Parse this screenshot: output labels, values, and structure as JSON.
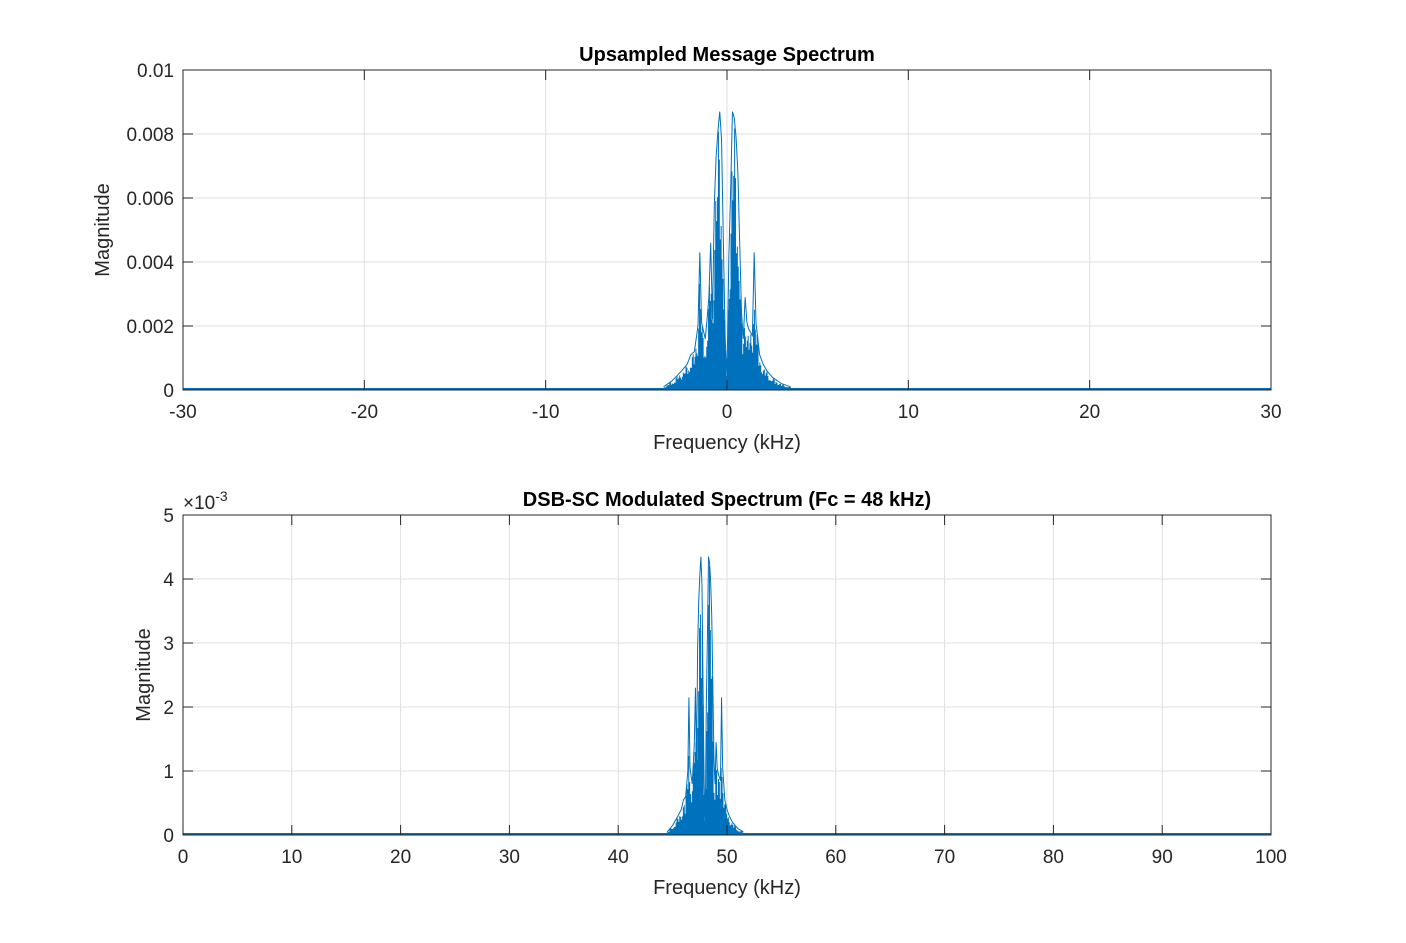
{
  "chart_data": [
    {
      "type": "line",
      "title": "Upsampled Message Spectrum",
      "xlabel": "Frequency (kHz)",
      "ylabel": "Magnitude",
      "xlim": [
        -30,
        30
      ],
      "ylim": [
        0,
        0.01
      ],
      "xticks": [
        -30,
        -20,
        -10,
        0,
        10,
        20,
        30
      ],
      "xtick_labels": [
        "-30",
        "-20",
        "-10",
        "0",
        "10",
        "20",
        "30"
      ],
      "yticks": [
        0,
        0.002,
        0.004,
        0.006,
        0.008,
        0.01
      ],
      "ytick_labels": [
        "0",
        "0.002",
        "0.004",
        "0.006",
        "0.008",
        "0.01"
      ],
      "exponent_label": "",
      "grid": true,
      "line_color": "#0072BD",
      "series": [
        {
          "x": [
            -3.5,
            -3,
            -2.5,
            -2.2,
            -2,
            -1.8,
            -1.6,
            -1.5,
            -1.4,
            -1.2,
            -1.1,
            -1.0,
            -0.9,
            -0.8,
            -0.7,
            -0.6,
            -0.5,
            -0.4,
            -0.3,
            -0.2,
            -0.1,
            0,
            0.1,
            0.2,
            0.3,
            0.4,
            0.5,
            0.6,
            0.7,
            0.8,
            0.9,
            1.0,
            1.1,
            1.2,
            1.4,
            1.5,
            1.6,
            1.8,
            2.0,
            2.2,
            2.5,
            3.0,
            3.5
          ],
          "y": [
            0.0001,
            0.0003,
            0.0006,
            0.0008,
            0.0011,
            0.0012,
            0.002,
            0.0043,
            0.0021,
            0.0016,
            0.0022,
            0.0029,
            0.0046,
            0.0022,
            0.0058,
            0.0073,
            0.0081,
            0.0087,
            0.0078,
            0.0046,
            0.0016,
            0.0004,
            0.0041,
            0.0062,
            0.0087,
            0.0085,
            0.0079,
            0.0068,
            0.0046,
            0.0024,
            0.0016,
            0.0029,
            0.0021,
            0.0019,
            0.0017,
            0.0043,
            0.0021,
            0.0011,
            0.0008,
            0.0006,
            0.0004,
            0.0002,
            0.0001
          ]
        }
      ]
    },
    {
      "type": "line",
      "title": "DSB-SC Modulated Spectrum (Fc = 48 kHz)",
      "xlabel": "Frequency (kHz)",
      "ylabel": "Magnitude",
      "xlim": [
        0,
        100
      ],
      "ylim": [
        0,
        0.005
      ],
      "xticks": [
        0,
        10,
        20,
        30,
        40,
        50,
        60,
        70,
        80,
        90,
        100
      ],
      "xtick_labels": [
        "0",
        "10",
        "20",
        "30",
        "40",
        "50",
        "60",
        "70",
        "80",
        "90",
        "100"
      ],
      "yticks": [
        0,
        0.001,
        0.002,
        0.003,
        0.004,
        0.005
      ],
      "ytick_labels": [
        "0",
        "1",
        "2",
        "3",
        "4",
        "5"
      ],
      "exponent_label": "×10",
      "exponent_power": "-3",
      "grid": true,
      "line_color": "#0072BD",
      "series": [
        {
          "x": [
            44.5,
            45,
            45.5,
            45.8,
            46,
            46.2,
            46.4,
            46.5,
            46.6,
            46.8,
            46.9,
            47.0,
            47.1,
            47.2,
            47.3,
            47.4,
            47.5,
            47.6,
            47.7,
            47.8,
            47.9,
            48.0,
            48.1,
            48.2,
            48.3,
            48.4,
            48.5,
            48.6,
            48.7,
            48.8,
            48.9,
            49.0,
            49.1,
            49.2,
            49.4,
            49.5,
            49.6,
            49.8,
            50.0,
            50.2,
            50.5,
            51.0,
            51.5
          ],
          "y": [
            5e-05,
            0.00015,
            0.0003,
            0.0004,
            0.00055,
            0.0006,
            0.001,
            0.00215,
            0.00105,
            0.0008,
            0.0011,
            0.00145,
            0.0023,
            0.0011,
            0.0029,
            0.00365,
            0.00405,
            0.00435,
            0.0039,
            0.0023,
            0.0008,
            0.0002,
            0.00205,
            0.0031,
            0.00435,
            0.00425,
            0.00395,
            0.0034,
            0.0023,
            0.0012,
            0.0008,
            0.00145,
            0.00105,
            0.00095,
            0.00085,
            0.00215,
            0.00105,
            0.00055,
            0.0004,
            0.0003,
            0.0002,
            0.0001,
            5e-05
          ]
        }
      ]
    }
  ]
}
